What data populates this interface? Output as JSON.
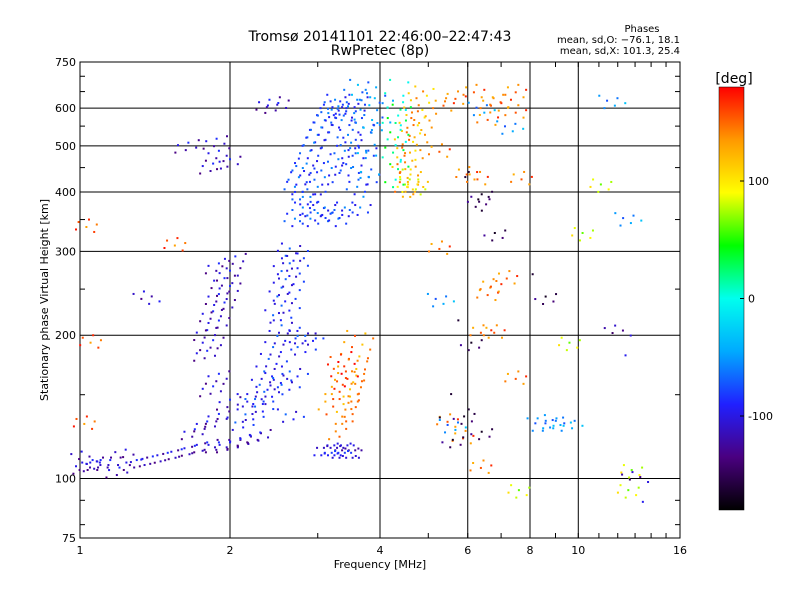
{
  "chart_data": {
    "type": "scatter",
    "title": "Tromsø 20141101 22:46:00–22:47:43",
    "subtitle": "RwPretec (8p)",
    "xlabel": "Frequency [MHz]",
    "ylabel": "Stationary phase Virtual Height [km]",
    "x_scale": "log",
    "y_scale": "log",
    "xlim": [
      1,
      16
    ],
    "ylim": [
      75,
      750
    ],
    "x_ticks": [
      1,
      2,
      4,
      6,
      8,
      10,
      16
    ],
    "y_ticks": [
      75,
      100,
      200,
      300,
      400,
      500,
      600,
      750
    ],
    "grid": true,
    "legend": {
      "title": "Phases",
      "line1": "mean, sd,O: −76.1, 18.1",
      "line2": "mean, sd,X: 101.3, 25.4",
      "placement": "top-right"
    },
    "colorbar": {
      "label": "[deg]",
      "min": -180,
      "max": 180,
      "ticks": [
        100,
        0,
        -100
      ],
      "colors": [
        "#000000",
        "#4a0080",
        "#2020ff",
        "#00aaff",
        "#00ffee",
        "#00ff00",
        "#ffff00",
        "#ff9900",
        "#ff0000"
      ]
    },
    "series": [
      {
        "name": "",
        "points": [
          [
            1.03,
            110
          ],
          [
            1.06,
            112
          ],
          [
            1.1,
            112
          ],
          [
            1.15,
            112
          ],
          [
            1.2,
            108
          ],
          [
            1.3,
            112
          ],
          [
            1.4,
            114
          ],
          [
            1.5,
            116
          ],
          [
            1.6,
            118
          ],
          [
            1.7,
            120
          ],
          [
            1.8,
            122
          ],
          [
            1.9,
            122
          ],
          [
            2.0,
            122
          ],
          [
            2.1,
            124
          ],
          [
            2.2,
            126
          ],
          [
            2.3,
            128
          ],
          [
            1.7,
            130
          ],
          [
            1.8,
            135
          ],
          [
            1.9,
            140
          ],
          [
            2.0,
            150
          ],
          [
            1.85,
            160
          ],
          [
            1.9,
            170
          ],
          [
            1.8,
            190
          ],
          [
            1.85,
            200
          ],
          [
            1.8,
            210
          ],
          [
            1.9,
            220
          ],
          [
            1.85,
            230
          ],
          [
            1.95,
            240
          ],
          [
            1.9,
            250
          ],
          [
            2.0,
            260
          ],
          [
            1.95,
            270
          ],
          [
            2.0,
            280
          ],
          [
            1.9,
            290
          ],
          [
            2.05,
            300
          ],
          [
            1.85,
            470
          ],
          [
            1.9,
            500
          ],
          [
            1.88,
            530
          ],
          [
            2.0,
            480
          ],
          [
            1.65,
            520
          ],
          [
            2.4,
            640
          ],
          [
            2.5,
            630
          ]
        ],
        "phase": -110
      },
      {
        "name": "",
        "points": [
          [
            2.1,
            125
          ],
          [
            2.2,
            130
          ],
          [
            2.3,
            140
          ],
          [
            2.35,
            150
          ],
          [
            2.4,
            160
          ],
          [
            2.45,
            170
          ],
          [
            2.5,
            180
          ],
          [
            2.55,
            190
          ],
          [
            2.6,
            200
          ],
          [
            2.5,
            210
          ],
          [
            2.6,
            220
          ],
          [
            2.55,
            230
          ],
          [
            2.6,
            240
          ],
          [
            2.65,
            250
          ],
          [
            2.6,
            260
          ],
          [
            2.7,
            270
          ],
          [
            2.65,
            280
          ],
          [
            2.7,
            290
          ],
          [
            2.6,
            150
          ],
          [
            2.7,
            160
          ],
          [
            2.8,
            180
          ],
          [
            2.3,
            135
          ],
          [
            2.4,
            145
          ],
          [
            2.5,
            155
          ],
          [
            2.2,
            140
          ],
          [
            2.65,
            130
          ],
          [
            2.8,
            190
          ],
          [
            2.9,
            190
          ]
        ],
        "phase": -85
      },
      {
        "name": "",
        "points": [
          [
            2.7,
            360
          ],
          [
            2.8,
            380
          ],
          [
            2.9,
            400
          ],
          [
            3.0,
            420
          ],
          [
            3.1,
            440
          ],
          [
            3.2,
            460
          ],
          [
            3.3,
            480
          ],
          [
            3.4,
            500
          ],
          [
            3.5,
            520
          ],
          [
            2.8,
            460
          ],
          [
            2.9,
            500
          ],
          [
            3.0,
            540
          ],
          [
            3.1,
            580
          ],
          [
            3.2,
            610
          ],
          [
            3.3,
            620
          ],
          [
            2.7,
            420
          ],
          [
            2.75,
            440
          ],
          [
            2.85,
            470
          ],
          [
            2.95,
            520
          ],
          [
            3.05,
            560
          ],
          [
            3.15,
            600
          ],
          [
            3.25,
            640
          ],
          [
            3.35,
            580
          ],
          [
            3.45,
            540
          ],
          [
            3.5,
            460
          ],
          [
            3.6,
            420
          ],
          [
            3.4,
            380
          ],
          [
            3.3,
            360
          ],
          [
            3.2,
            370
          ],
          [
            3.1,
            380
          ],
          [
            3.0,
            370
          ],
          [
            2.9,
            360
          ],
          [
            2.8,
            400
          ],
          [
            3.55,
            600
          ],
          [
            3.6,
            640
          ],
          [
            3.7,
            560
          ],
          [
            3.75,
            500
          ],
          [
            3.8,
            440
          ],
          [
            3.65,
            380
          ],
          [
            3.45,
            620
          ]
        ],
        "phase": -80
      },
      {
        "name": "",
        "points": [
          [
            3.6,
            610
          ],
          [
            3.7,
            640
          ],
          [
            3.8,
            520
          ],
          [
            3.9,
            580
          ],
          [
            4.0,
            600
          ],
          [
            3.95,
            540
          ],
          [
            3.7,
            460
          ],
          [
            3.75,
            420
          ]
        ],
        "phase": -50
      },
      {
        "name": "",
        "points": [
          [
            3.1,
            116
          ],
          [
            3.2,
            116
          ],
          [
            3.3,
            116
          ],
          [
            3.4,
            116
          ],
          [
            3.5,
            116
          ],
          [
            3.25,
            117
          ],
          [
            3.45,
            117
          ]
        ],
        "phase": -105
      },
      {
        "name": "",
        "points": [
          [
            3.2,
            130
          ],
          [
            3.3,
            135
          ],
          [
            3.4,
            140
          ],
          [
            3.45,
            150
          ],
          [
            3.5,
            160
          ],
          [
            3.55,
            170
          ],
          [
            3.6,
            180
          ],
          [
            3.65,
            190
          ],
          [
            3.4,
            145
          ],
          [
            3.3,
            140
          ],
          [
            3.5,
            155
          ]
        ],
        "phase": 140
      },
      {
        "name": "",
        "points": [
          [
            3.35,
            170
          ],
          [
            3.4,
            160
          ],
          [
            3.3,
            180
          ]
        ],
        "phase": 160
      },
      {
        "name": "",
        "points": [
          [
            4.5,
            420
          ],
          [
            4.6,
            460
          ],
          [
            4.7,
            500
          ],
          [
            4.8,
            540
          ],
          [
            4.9,
            580
          ],
          [
            5.0,
            620
          ],
          [
            4.55,
            480
          ],
          [
            4.65,
            520
          ],
          [
            4.75,
            560
          ],
          [
            4.85,
            600
          ],
          [
            4.6,
            440
          ]
        ],
        "phase": 125
      },
      {
        "name": "",
        "points": [
          [
            4.5,
            410
          ],
          [
            4.55,
            430
          ],
          [
            4.6,
            400
          ],
          [
            4.7,
            410
          ]
        ],
        "phase": 100
      },
      {
        "name": "",
        "points": [
          [
            4.3,
            520
          ],
          [
            4.4,
            560
          ],
          [
            4.35,
            600
          ],
          [
            4.45,
            640
          ],
          [
            4.3,
            440
          ],
          [
            4.4,
            480
          ]
        ],
        "phase": 20
      },
      {
        "name": "",
        "points": [
          [
            5.3,
            600
          ],
          [
            5.6,
            620
          ],
          [
            6.1,
            640
          ],
          [
            6.6,
            600
          ],
          [
            6.9,
            610
          ],
          [
            7.4,
            640
          ],
          [
            5.2,
            480
          ],
          [
            6.5,
            240
          ],
          [
            6.3,
            200
          ],
          [
            6.6,
            250
          ],
          [
            5.2,
            300
          ],
          [
            5.4,
            130
          ],
          [
            5.8,
            120
          ],
          [
            6.3,
            104
          ],
          [
            7.1,
            260
          ],
          [
            7.4,
            160
          ],
          [
            5.9,
            430
          ],
          [
            6.5,
            560
          ],
          [
            7.4,
            580
          ],
          [
            6.2,
            420
          ],
          [
            7.6,
            420
          ],
          [
            6.7,
            200
          ]
        ],
        "phase": 150
      },
      {
        "name": "",
        "points": [
          [
            6.3,
            400
          ],
          [
            6.8,
            340
          ],
          [
            6.4,
            410
          ],
          [
            8.6,
            250
          ],
          [
            5.9,
            140
          ],
          [
            6.4,
            130
          ],
          [
            5.6,
            125
          ],
          [
            6.1,
            200
          ]
        ],
        "phase": -150
      },
      {
        "name": "",
        "points": [
          [
            8.4,
            126
          ],
          [
            8.8,
            126
          ],
          [
            9.6,
            126
          ],
          [
            9.1,
            128
          ],
          [
            5.3,
            230
          ],
          [
            5.6,
            125
          ],
          [
            7.3,
            530
          ],
          [
            6.4,
            580
          ],
          [
            11.7,
            600
          ],
          [
            12.6,
            340
          ]
        ],
        "phase": -50
      },
      {
        "name": "",
        "points": [
          [
            10.2,
            340
          ],
          [
            12.8,
            108
          ],
          [
            12.6,
            98
          ],
          [
            9.6,
            200
          ],
          [
            7.6,
            98
          ],
          [
            11.1,
            430
          ]
        ],
        "phase": 80
      },
      {
        "name": "",
        "points": [
          [
            1.02,
            106
          ],
          [
            1.25,
            107
          ],
          [
            1.36,
            230
          ]
        ],
        "phase": -110
      },
      {
        "name": "",
        "points": [
          [
            1.03,
            350
          ],
          [
            1.55,
            320
          ],
          [
            1.05,
            200
          ],
          [
            1.02,
            135
          ]
        ],
        "phase": 150
      },
      {
        "name": "",
        "points": [
          [
            12.0,
            195
          ],
          [
            13.0,
            96
          ]
        ],
        "phase": -120
      }
    ]
  }
}
